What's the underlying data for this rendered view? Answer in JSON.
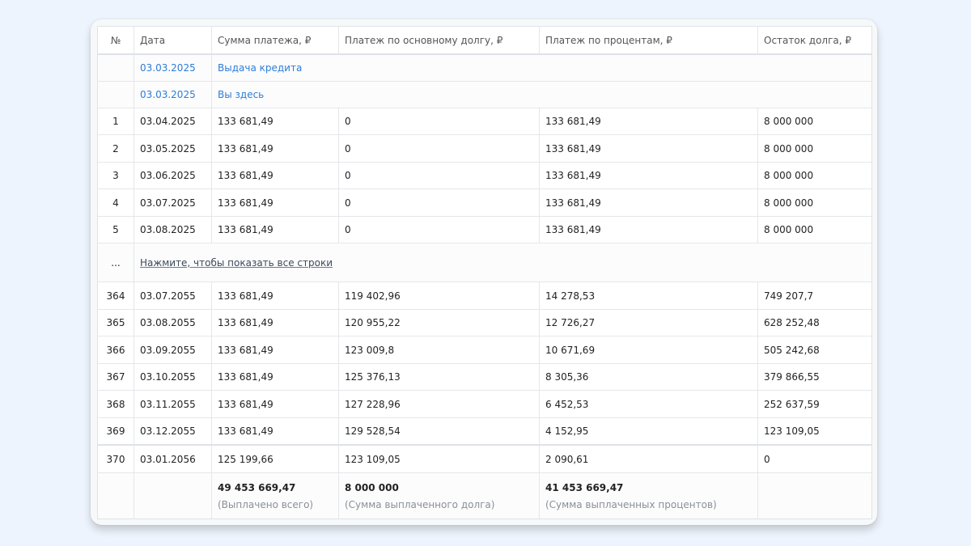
{
  "table": {
    "headers": [
      "№",
      "Дата",
      "Сумма платежа, ₽",
      "Платеж по основному долгу, ₽",
      "Платеж по процентам, ₽",
      "Остаток долга, ₽"
    ],
    "info_rows": [
      {
        "date": "03.03.2025",
        "label": "Выдача кредита"
      },
      {
        "date": "03.03.2025",
        "label": "Вы здесь"
      }
    ],
    "first_rows": [
      {
        "n": "1",
        "date": "03.04.2025",
        "payment": "133 681,49",
        "principal": "0",
        "interest": "133 681,49",
        "balance": "8 000 000"
      },
      {
        "n": "2",
        "date": "03.05.2025",
        "payment": "133 681,49",
        "principal": "0",
        "interest": "133 681,49",
        "balance": "8 000 000"
      },
      {
        "n": "3",
        "date": "03.06.2025",
        "payment": "133 681,49",
        "principal": "0",
        "interest": "133 681,49",
        "balance": "8 000 000"
      },
      {
        "n": "4",
        "date": "03.07.2025",
        "payment": "133 681,49",
        "principal": "0",
        "interest": "133 681,49",
        "balance": "8 000 000"
      },
      {
        "n": "5",
        "date": "03.08.2025",
        "payment": "133 681,49",
        "principal": "0",
        "interest": "133 681,49",
        "balance": "8 000 000"
      }
    ],
    "ellipsis": "...",
    "show_all_label": "Нажмите, чтобы показать все строки",
    "last_rows": [
      {
        "n": "364",
        "date": "03.07.2055",
        "payment": "133 681,49",
        "principal": "119 402,96",
        "interest": "14 278,53",
        "balance": "749 207,7"
      },
      {
        "n": "365",
        "date": "03.08.2055",
        "payment": "133 681,49",
        "principal": "120 955,22",
        "interest": "12 726,27",
        "balance": "628 252,48"
      },
      {
        "n": "366",
        "date": "03.09.2055",
        "payment": "133 681,49",
        "principal": "123 009,8",
        "interest": "10 671,69",
        "balance": "505 242,68"
      },
      {
        "n": "367",
        "date": "03.10.2055",
        "payment": "133 681,49",
        "principal": "125 376,13",
        "interest": "8 305,36",
        "balance": "379 866,55"
      },
      {
        "n": "368",
        "date": "03.11.2055",
        "payment": "133 681,49",
        "principal": "127 228,96",
        "interest": "6 452,53",
        "balance": "252 637,59"
      },
      {
        "n": "369",
        "date": "03.12.2055",
        "payment": "133 681,49",
        "principal": "129 528,54",
        "interest": "4 152,95",
        "balance": "123 109,05"
      },
      {
        "n": "370",
        "date": "03.01.2056",
        "payment": "125 199,66",
        "principal": "123 109,05",
        "interest": "2 090,61",
        "balance": "0"
      }
    ],
    "totals": {
      "payment_total": "49 453 669,47",
      "payment_caption": "(Выплачено всего)",
      "principal_total": "8 000 000",
      "principal_caption": "(Сумма выплаченного долга)",
      "interest_total": "41 453 669,47",
      "interest_caption": "(Сумма выплаченных процентов)"
    }
  },
  "colors": {
    "page_background": "#eef4fd",
    "link": "#2e7dd7",
    "caption": "#8a8f96"
  }
}
